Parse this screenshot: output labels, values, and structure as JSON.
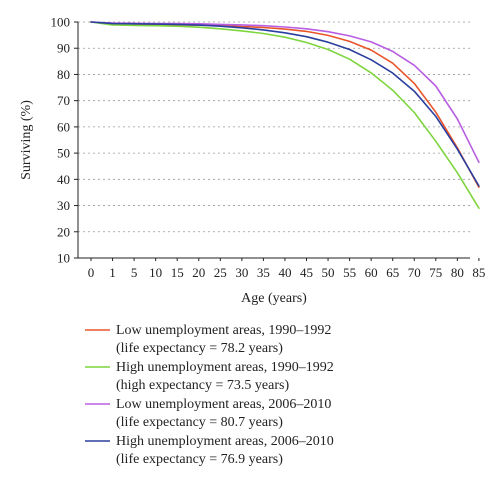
{
  "chart_data": {
    "type": "line",
    "xlabel": "Age (years)",
    "ylabel": "Surviving (%)",
    "ylim": [
      10,
      100
    ],
    "yticks": [
      10,
      20,
      30,
      40,
      50,
      60,
      70,
      80,
      90,
      100
    ],
    "x_tick_labels": [
      "0",
      "1",
      "5",
      "10",
      "15",
      "20",
      "25",
      "30",
      "35",
      "40",
      "45",
      "50",
      "55",
      "60",
      "65",
      "70",
      "75",
      "80",
      "85"
    ],
    "grid": "horizontal dotted",
    "legend_position": "bottom",
    "series": [
      {
        "name": "Low unemployment areas, 1990–1992",
        "note": "(life expectancy = 78.2 years)",
        "color": "#e8552b",
        "values": [
          100,
          99.2,
          99.1,
          99.0,
          98.9,
          98.8,
          98.6,
          98.3,
          97.9,
          97.3,
          96.4,
          94.9,
          92.6,
          89.3,
          84.3,
          76.6,
          65.6,
          52.0,
          37.0
        ]
      },
      {
        "name": "High unemployment areas, 1990–1992",
        "note": "(high expectancy = 73.5 years)",
        "color": "#7ed53d",
        "values": [
          100,
          98.9,
          98.7,
          98.6,
          98.4,
          98.0,
          97.4,
          96.6,
          95.6,
          94.2,
          92.2,
          89.5,
          85.8,
          80.6,
          74.0,
          65.5,
          54.5,
          42.5,
          29.0
        ]
      },
      {
        "name": "Low unemployment areas, 2006–2010",
        "note": "(life expectancy = 80.7 years)",
        "color": "#b85ee2",
        "values": [
          100,
          99.6,
          99.5,
          99.4,
          99.4,
          99.3,
          99.1,
          98.9,
          98.6,
          98.1,
          97.4,
          96.3,
          94.7,
          92.4,
          88.8,
          83.5,
          75.6,
          63.0,
          46.5
        ]
      },
      {
        "name": "High unemployment areas, 2006–2010",
        "note": "(life expectancy = 76.9 years)",
        "color": "#2b3f9e",
        "values": [
          100,
          99.4,
          99.3,
          99.2,
          99.1,
          98.8,
          98.4,
          97.8,
          97.0,
          95.9,
          94.4,
          92.3,
          89.5,
          85.6,
          80.5,
          73.6,
          64.0,
          51.5,
          37.5
        ]
      }
    ]
  }
}
